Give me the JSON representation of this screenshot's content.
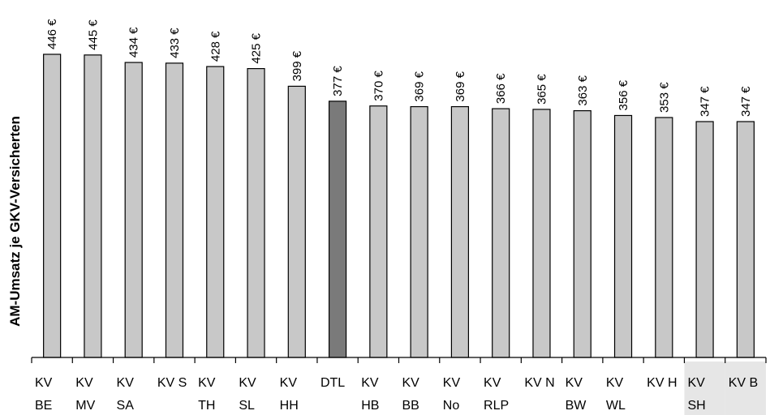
{
  "chart_data": {
    "type": "bar",
    "ylabel": "AM-Umsatz je GKV-Versicherten",
    "xlabel": "",
    "ylim": [
      0,
      460
    ],
    "grid": false,
    "legend": "none",
    "categories": [
      [
        "KV",
        "BE"
      ],
      [
        "KV",
        "MV"
      ],
      [
        "KV",
        "SA"
      ],
      [
        "KV S",
        ""
      ],
      [
        "KV",
        "TH"
      ],
      [
        "KV",
        "SL"
      ],
      [
        "KV",
        "HH"
      ],
      [
        "DTL",
        ""
      ],
      [
        "KV",
        "HB"
      ],
      [
        "KV",
        "BB"
      ],
      [
        "KV",
        "No"
      ],
      [
        "KV",
        "RLP"
      ],
      [
        "KV N",
        ""
      ],
      [
        "KV",
        "BW"
      ],
      [
        "KV",
        "WL"
      ],
      [
        "KV H",
        ""
      ],
      [
        "KV",
        "SH"
      ],
      [
        "KV B",
        ""
      ]
    ],
    "values": [
      446,
      445,
      434,
      433,
      428,
      425,
      399,
      377,
      370,
      369,
      369,
      366,
      365,
      363,
      356,
      353,
      347,
      347
    ],
    "value_labels": [
      "446 €",
      "445 €",
      "434 €",
      "433 €",
      "428 €",
      "425 €",
      "399 €",
      "377 €",
      "370 €",
      "369 €",
      "369 €",
      "366 €",
      "365 €",
      "363 €",
      "356 €",
      "353 €",
      "347 €",
      "347 €"
    ],
    "highlight_index": 7,
    "shaded_label_indices": [
      16,
      17
    ],
    "colors": {
      "bar": "#c8c8c8",
      "highlight": "#7a7a7a",
      "outline": "#000000",
      "label_shade": "#e6e6e6"
    }
  }
}
